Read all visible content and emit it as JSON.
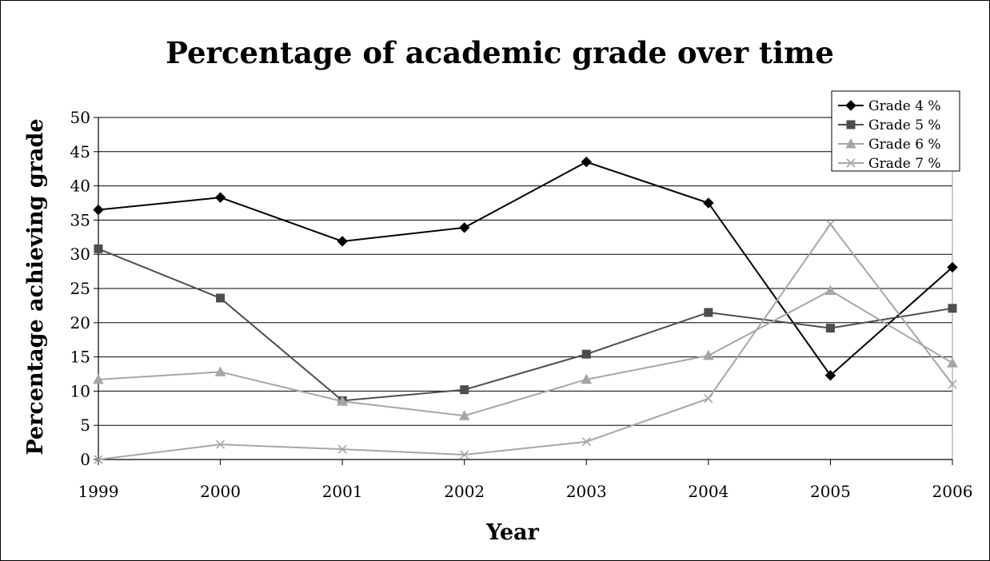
{
  "chart_data": {
    "type": "line",
    "title": "Percentage of academic grade over time",
    "xlabel": "Year",
    "ylabel": "Percentage achieving grade",
    "categories": [
      "1999",
      "2000",
      "2001",
      "2002",
      "2003",
      "2004",
      "2005",
      "2006"
    ],
    "ylim": [
      0,
      50
    ],
    "yticks": [
      "0",
      "5",
      "10",
      "15",
      "20",
      "25",
      "30",
      "35",
      "40",
      "45",
      "50"
    ],
    "grid": true,
    "legend_position": "top-right",
    "series": [
      {
        "name": "Grade 4 %",
        "color": "#000000",
        "marker": "diamond",
        "values": [
          36.5,
          38.3,
          31.9,
          33.9,
          43.5,
          37.5,
          12.3,
          28.1
        ]
      },
      {
        "name": "Grade 5 %",
        "color": "#4d4d4d",
        "marker": "square",
        "values": [
          30.8,
          23.6,
          8.6,
          10.2,
          15.4,
          21.5,
          19.2,
          22.1
        ]
      },
      {
        "name": "Grade 6 %",
        "color": "#a6a6a6",
        "marker": "triangle",
        "values": [
          11.7,
          12.8,
          8.5,
          6.4,
          11.7,
          15.2,
          24.7,
          14.1
        ]
      },
      {
        "name": "Grade 7 %",
        "color": "#a6a6a6",
        "marker": "x",
        "values": [
          0.0,
          2.2,
          1.5,
          0.7,
          2.6,
          8.9,
          34.4,
          11.0
        ]
      }
    ]
  }
}
